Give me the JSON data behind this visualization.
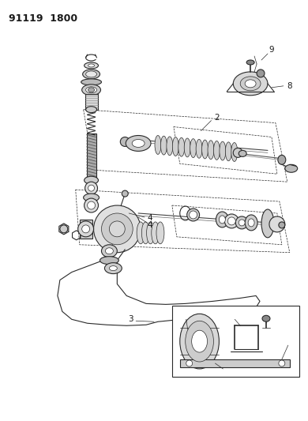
{
  "title": "91119  1800",
  "bg_color": "#ffffff",
  "line_color": "#2a2a2a",
  "label_color": "#1a1a1a",
  "figsize": [
    3.9,
    5.33
  ],
  "dpi": 100,
  "title_fontsize": 9,
  "label_fontsize": 7.5,
  "lw_main": 0.8,
  "lw_thin": 0.5,
  "lw_thick": 1.2
}
